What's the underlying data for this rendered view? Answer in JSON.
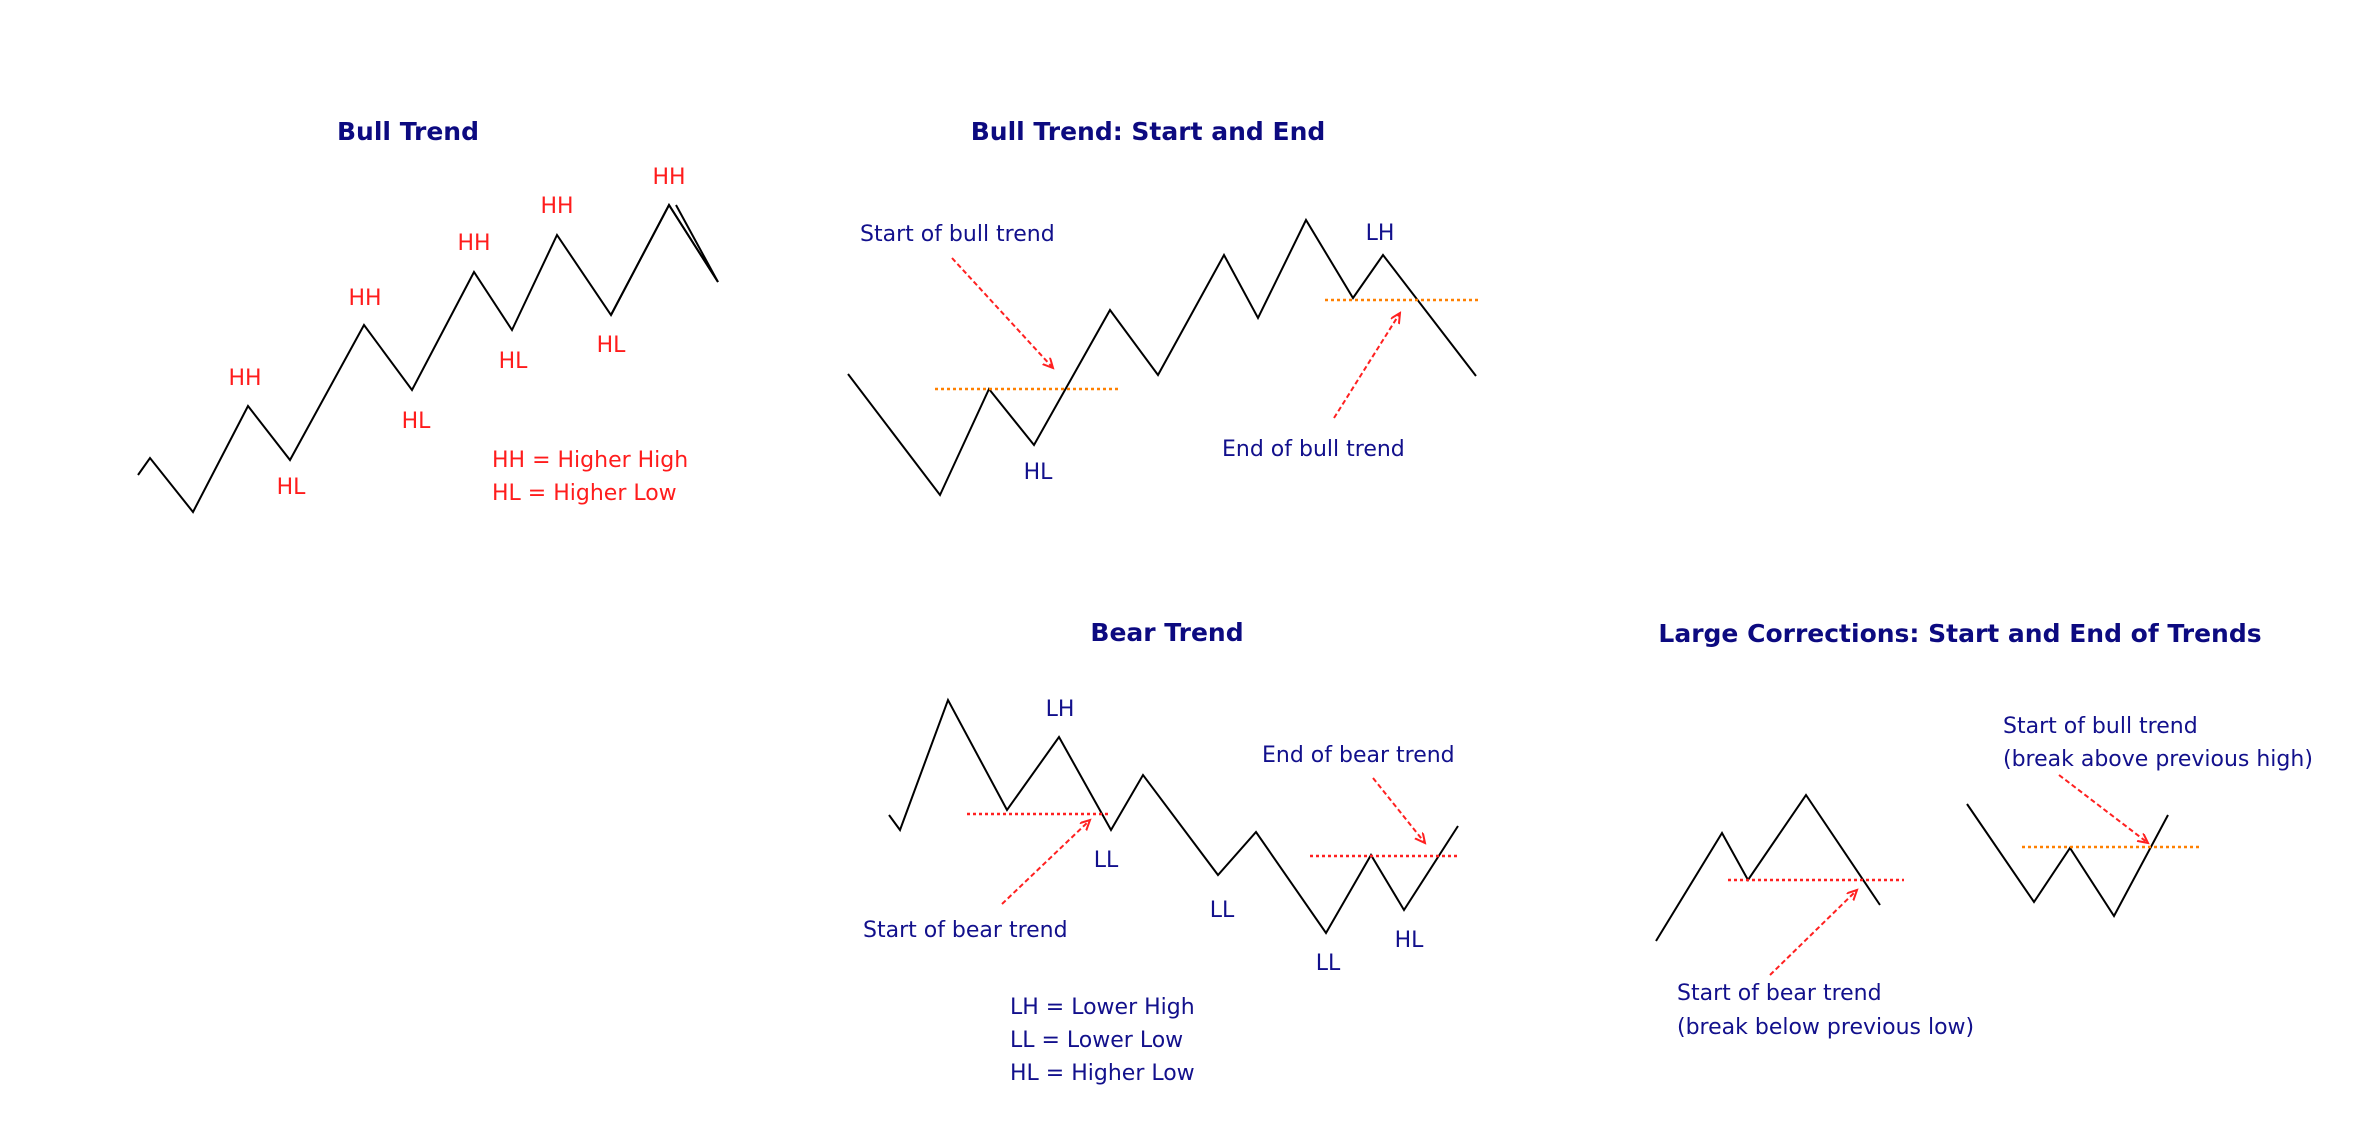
{
  "colors": {
    "title": "#0c0a80",
    "label_red": "#ff1c1c",
    "label_blue": "#12108c",
    "line": "#000000",
    "level_orange": "#ff8000",
    "level_red": "#ff2020"
  },
  "panels": {
    "bull_trend": {
      "title": "Bull Trend",
      "hh": "HH",
      "hl": "HL",
      "legend": [
        "HH = Higher High",
        "HL = Higher Low"
      ]
    },
    "bull_start_end": {
      "title": "Bull Trend: Start and End",
      "start_label": "Start of bull trend",
      "end_label": "End of bull trend",
      "lh": "LH",
      "hl": "HL"
    },
    "bear_trend": {
      "title": "Bear Trend",
      "start_label": "Start of bear trend",
      "end_label": "End of bear trend",
      "lh": "LH",
      "ll": "LL",
      "hl": "HL",
      "legend": [
        "LH = Lower High",
        "LL = Lower Low",
        "HL = Higher Low"
      ]
    },
    "large_corrections": {
      "title": "Large Corrections: Start and End of Trends",
      "bear_start": [
        "Start of bear trend",
        "(break below previous low)"
      ],
      "bull_start": [
        "Start of bull trend",
        "(break above previous high)"
      ]
    }
  }
}
